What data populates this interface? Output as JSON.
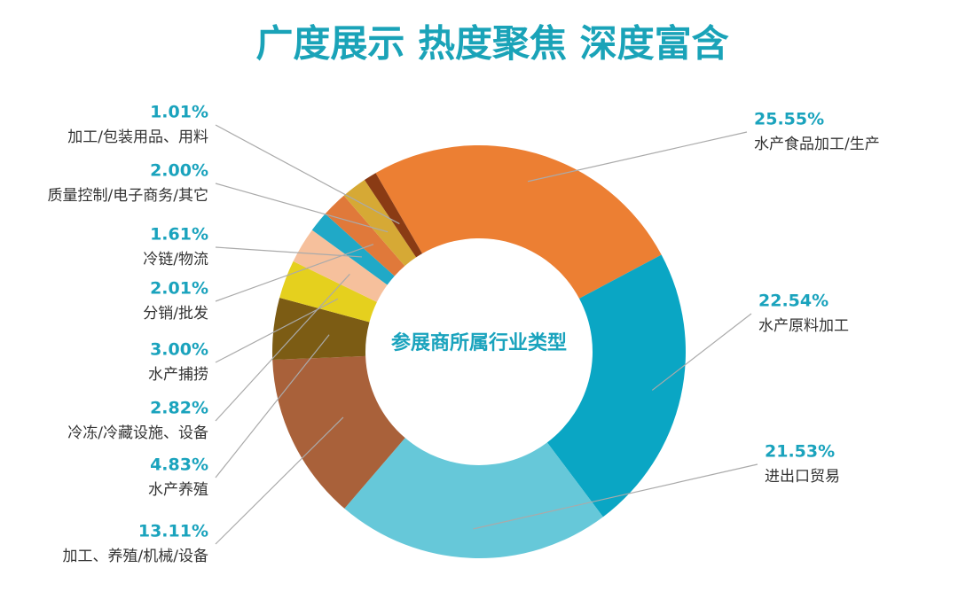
{
  "chart_data": {
    "type": "pie",
    "title": "广度展示 热度聚焦 深度富含",
    "center_label": "参展商所属行业类型",
    "categories": [
      "水产食品加工/生产",
      "水产原料加工",
      "进出口贸易",
      "加工、养殖/机械/设备",
      "水产养殖",
      "水产捕捞",
      "冷冻/冷藏设施、设备",
      "冷链/物流",
      "分销/批发",
      "质量控制/电子商务/其它",
      "加工/包装用品、用料"
    ],
    "values": [
      25.55,
      22.54,
      21.53,
      13.11,
      4.83,
      3.0,
      2.82,
      1.61,
      2.01,
      2.0,
      1.01
    ],
    "value_labels": [
      "25.55%",
      "22.54%",
      "21.53%",
      "13.11%",
      "4.83%",
      "3.00%",
      "2.82%",
      "1.61%",
      "2.01%",
      "2.00%",
      "1.01%"
    ],
    "colors": [
      "#ec7f33",
      "#0aa6c4",
      "#66c8d9",
      "#a9613a",
      "#7c5c14",
      "#e5d01e",
      "#f6c09c",
      "#20a9c7",
      "#e0793a",
      "#d6a935",
      "#8a3b14"
    ]
  }
}
